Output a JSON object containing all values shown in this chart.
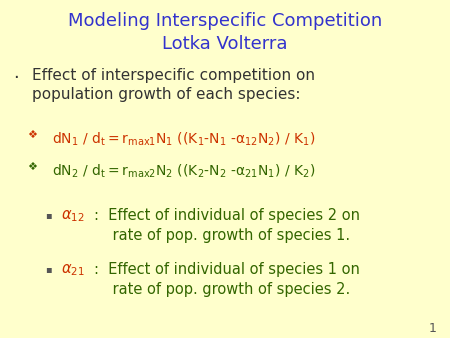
{
  "background_color": "#FFFFCC",
  "title_line1": "Modeling Interspecific Competition",
  "title_line2": "Lotka Volterra",
  "title_color": "#3333CC",
  "title_fontsize": 13,
  "bullet1_color": "#333333",
  "bullet1_fontsize": 11,
  "eq1_color": "#CC3300",
  "eq2_color": "#336600",
  "alpha_symbol_color": "#CC3300",
  "alpha_text_color": "#336600",
  "slide_number": "1"
}
